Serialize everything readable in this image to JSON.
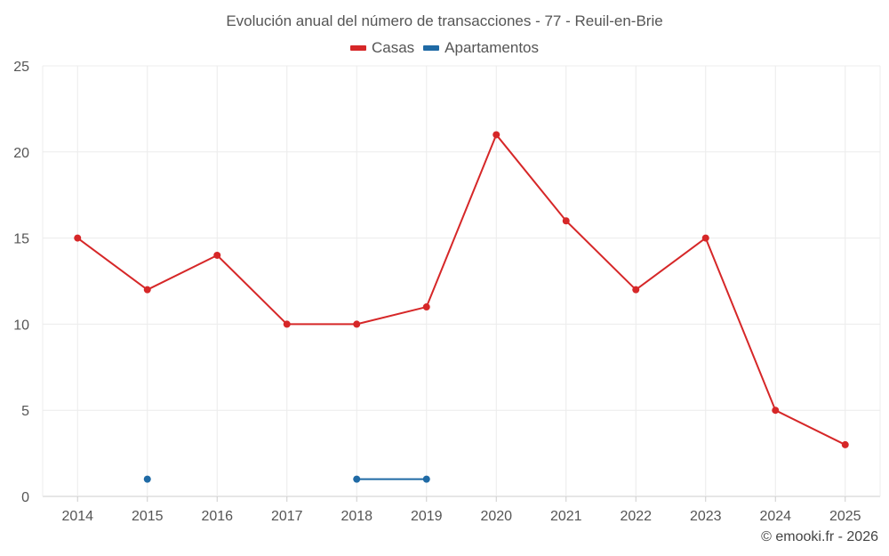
{
  "chart_data": {
    "type": "line",
    "title": "Evolución anual del número de transacciones - 77 - Reuil-en-Brie",
    "xlabel": "",
    "ylabel": "",
    "categories": [
      "2014",
      "2015",
      "2016",
      "2017",
      "2018",
      "2019",
      "2020",
      "2021",
      "2022",
      "2023",
      "2024",
      "2025"
    ],
    "ylim": [
      0,
      25
    ],
    "yticks": [
      0,
      5,
      10,
      15,
      20,
      25
    ],
    "grid": true,
    "legend_position": "top-center",
    "series": [
      {
        "name": "Casas",
        "color": "#d62728",
        "values": [
          15,
          12,
          14,
          10,
          10,
          11,
          21,
          16,
          12,
          15,
          5,
          3
        ]
      },
      {
        "name": "Apartamentos",
        "color": "#1f6aa5",
        "values": [
          null,
          1,
          null,
          null,
          1,
          1,
          null,
          null,
          null,
          null,
          null,
          null
        ]
      }
    ]
  },
  "footer": {
    "credit": "© emooki.fr - 2026"
  }
}
